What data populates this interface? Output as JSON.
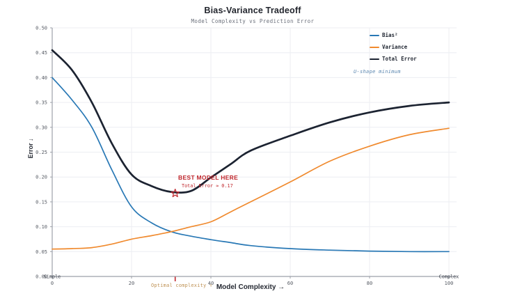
{
  "chart_data": {
    "type": "line",
    "title": "Bias-Variance Tradeoff",
    "subtitle": "Model Complexity vs Prediction Error",
    "xlabel": "Model Complexity →",
    "ylabel": "Error ↓",
    "xlim": [
      0,
      100
    ],
    "ylim": [
      0,
      0.5
    ],
    "x_ticks": [
      0,
      20,
      40,
      60,
      80,
      100
    ],
    "y_ticks": [
      0.0,
      0.05,
      0.1,
      0.15,
      0.2,
      0.25,
      0.3,
      0.35,
      0.4,
      0.45,
      0.5
    ],
    "x_axis_end_labels": {
      "left": "Simple",
      "right": "Complex"
    },
    "grid": true,
    "legend_position": "upper-right",
    "legend_note": {
      "text": "U-shape minimum",
      "color": "#5b87b0"
    },
    "x": [
      0,
      5,
      10,
      15,
      20,
      25,
      30,
      35,
      40,
      45,
      50,
      60,
      70,
      80,
      90,
      100
    ],
    "series": [
      {
        "name": "Bias²",
        "color": "#2878b5",
        "width": 1.7,
        "values": [
          0.4,
          0.355,
          0.3,
          0.215,
          0.14,
          0.108,
          0.09,
          0.081,
          0.074,
          0.068,
          0.062,
          0.056,
          0.053,
          0.051,
          0.05,
          0.05
        ]
      },
      {
        "name": "Variance",
        "color": "#f08a2e",
        "width": 1.7,
        "values": [
          0.055,
          0.056,
          0.058,
          0.065,
          0.075,
          0.082,
          0.09,
          0.1,
          0.11,
          0.13,
          0.15,
          0.19,
          0.232,
          0.262,
          0.285,
          0.298
        ]
      },
      {
        "name": "Total Error",
        "color": "#1c2331",
        "width": 2.7,
        "values": [
          0.455,
          0.415,
          0.35,
          0.268,
          0.205,
          0.182,
          0.17,
          0.172,
          0.199,
          0.226,
          0.253,
          0.283,
          0.31,
          0.33,
          0.343,
          0.35
        ]
      }
    ],
    "annotations": {
      "best_model": {
        "label": "BEST MODEL HERE",
        "value_label": "Total Error ≈ 0.17",
        "x": 31,
        "y": 0.17,
        "marker": "star",
        "color": "#c0262c"
      },
      "optimal": {
        "label": "Optimal complexity ↑",
        "x": 31,
        "color": "#bf9255"
      }
    },
    "colors": {
      "grid": "#eceef2",
      "spine": "#9ca1a9",
      "tick_label": "#555a63",
      "title": "#22252d",
      "subtitle": "#6a6f7a",
      "background": "#ffffff"
    }
  }
}
